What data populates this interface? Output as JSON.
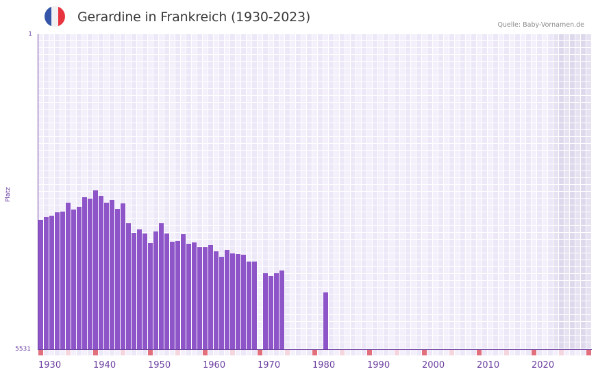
{
  "header": {
    "title": "Gerardine in Frankreich (1930-2023)",
    "source": "Quelle: Baby-Vornamen.de",
    "flag_icon": "france-flag-icon",
    "flag_colors": [
      "#3555a8",
      "#f1f1f4",
      "#e8343f"
    ]
  },
  "colors": {
    "bar": "#8e55c8",
    "axis": "#6b3fa0",
    "grid_light": "#f3f0fb",
    "grid_dark": "#ece8f8",
    "future_light": "#e6e2f1",
    "future_dark": "#ddd8ec",
    "marker_decade": "#e2707c",
    "marker_half": "#f5d6df",
    "marker_light": "#f3f0fb",
    "marker_dark": "#ece8f8"
  },
  "chart_data": {
    "type": "bar",
    "title": "Gerardine in Frankreich (1930-2023)",
    "xlabel": "",
    "ylabel": "Platz",
    "y_axis_inverted": true,
    "ylim": [
      1,
      5531
    ],
    "y_ticks": [
      "1",
      "5531"
    ],
    "x_range": [
      1930,
      2030
    ],
    "x_ticks": [
      "1930",
      "1940",
      "1950",
      "1960",
      "1970",
      "1980",
      "1990",
      "2000",
      "2010",
      "2020"
    ],
    "future_shaded_from": 2024,
    "grid": true,
    "legend": null,
    "x": [
      1930,
      1931,
      1932,
      1933,
      1934,
      1935,
      1936,
      1937,
      1938,
      1939,
      1940,
      1941,
      1942,
      1943,
      1944,
      1945,
      1946,
      1947,
      1948,
      1949,
      1950,
      1951,
      1952,
      1953,
      1954,
      1955,
      1956,
      1957,
      1958,
      1959,
      1960,
      1961,
      1962,
      1963,
      1964,
      1965,
      1966,
      1967,
      1968,
      1969,
      1971,
      1972,
      1973,
      1974,
      1982
    ],
    "values": [
      3255,
      3211,
      3183,
      3127,
      3115,
      2955,
      3075,
      3027,
      2859,
      2886,
      2738,
      2835,
      2955,
      2910,
      3063,
      2967,
      3319,
      3487,
      3424,
      3499,
      3668,
      3463,
      3319,
      3499,
      3644,
      3632,
      3511,
      3680,
      3656,
      3740,
      3740,
      3704,
      3812,
      3908,
      3788,
      3848,
      3860,
      3872,
      3992,
      3992,
      4197,
      4245,
      4197,
      4149,
      4530
    ]
  }
}
